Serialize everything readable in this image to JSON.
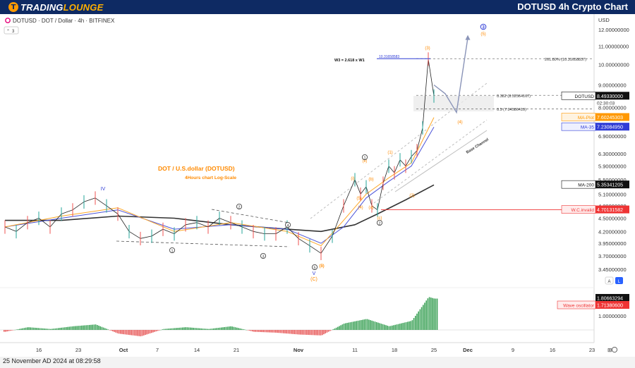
{
  "header": {
    "brand_part1": "TRADING",
    "brand_part2": "LOUNGE",
    "chart_title": "DOTUSD 4h Crypto Chart"
  },
  "symbol_line": "DOTUSD · DOT / Dollar · 4h · BITFINEX",
  "indicator_count": "3",
  "footer_date": "25 November AD 2024 at 08:29:58",
  "price_axis": {
    "currency": "USD",
    "ticks": [
      "12.00000000",
      "11.00000000",
      "10.00000000",
      "9.00000000",
      "8.00000000",
      "6.90000000",
      "6.30000000",
      "5.90000000",
      "5.50000000",
      "5.10000000",
      "4.80000000",
      "4.50000000",
      "4.20000000",
      "3.95000000",
      "3.70000000",
      "3.45000000"
    ],
    "osc_tick": "1.00000000",
    "scale_buttons": [
      "A",
      "L"
    ]
  },
  "time_axis": {
    "ticks": [
      "16",
      "23",
      "Oct",
      "7",
      "14",
      "21",
      "Nov",
      "11",
      "18",
      "25",
      "Dec",
      "9",
      "16",
      "23"
    ]
  },
  "badges": {
    "price": {
      "name": "DOTUSD",
      "value": "8.49330000",
      "countdown": "02:30:03",
      "color": "#111111"
    },
    "ma_plot": {
      "name": "MA-Plot",
      "value": "7.60245303",
      "color": "#ff9800"
    },
    "ma35": {
      "name": "MA-35",
      "value": "7.23084950",
      "color": "#2f3cd6"
    },
    "ma200": {
      "name": "MA-200",
      "value": "5.35341205",
      "color": "#111111"
    },
    "invalid": {
      "name": "W.C.invalid",
      "value": "4.70131582",
      "color": "#ef3434"
    },
    "osc_value": {
      "value": "1.80663294",
      "color": "#111111"
    },
    "osc": {
      "name": "Wave oscillator",
      "value": "1.71380600",
      "color": "#ef3434"
    }
  },
  "annotations": {
    "chart_name": "DOT / U.S.dollar (DOTUSD)",
    "chart_sub": "4Hours chart  Log-Scale",
    "w3_note": "W3 = 2.618 x W1",
    "fib_top_label": "10.31658583",
    "fib_2618": "261.80% (10.31658837)",
    "fib_0382": "0.382 (8.52564167)",
    "fib_05": "0.5 (7.94586419)",
    "base_channel": "Base Channel"
  },
  "wave_labels": {
    "big_wave_3": "3",
    "proj_5": "(5)",
    "proj_4": "(4)",
    "w3": "(3)",
    "w1": "(1)",
    "w2": "(2)",
    "w4": "(4)",
    "w5": "(5)",
    "wi": "(i)",
    "wii": "(ii)",
    "circ_1": "1",
    "circ_2": "2",
    "circ_3": "3",
    "circ_4": "4",
    "circ_5": "5",
    "circ_1b": "1",
    "circ_2b": "2",
    "roman_iv": "IV",
    "roman_v": "V",
    "circ_b": "B",
    "sub_a": "(a)",
    "sub_b": "(b)",
    "sub_c": "(c)",
    "sub_5b": "(5)",
    "sub_2b": "(2)",
    "big_c": "(C)"
  },
  "chart_data": {
    "type": "line",
    "title": "DOT / U.S.dollar (DOTUSD)",
    "scale": "log",
    "x_unit": "date 2024",
    "ylim": [
      3.4,
      12.5
    ],
    "series": [
      {
        "name": "DOTUSD",
        "x": [
          "Sep 10",
          "Sep 12",
          "Sep 14",
          "Sep 16",
          "Sep 18",
          "Sep 20",
          "Sep 22",
          "Sep 24",
          "Sep 26",
          "Sep 28",
          "Sep 30",
          "Oct 2",
          "Oct 4",
          "Oct 6",
          "Oct 8",
          "Oct 10",
          "Oct 12",
          "Oct 14",
          "Oct 16",
          "Oct 18",
          "Oct 20",
          "Oct 22",
          "Oct 24",
          "Oct 26",
          "Oct 28",
          "Oct 30",
          "Nov 1",
          "Nov 3",
          "Nov 5",
          "Nov 7",
          "Nov 9",
          "Nov 11",
          "Nov 12",
          "Nov 13",
          "Nov 14",
          "Nov 15",
          "Nov 16",
          "Nov 17",
          "Nov 18",
          "Nov 19",
          "Nov 20",
          "Nov 21",
          "Nov 22",
          "Nov 23",
          "Nov 24",
          "Nov 25"
        ],
        "y": [
          4.3,
          4.2,
          4.4,
          4.5,
          4.3,
          4.6,
          4.7,
          4.9,
          5.0,
          4.8,
          4.6,
          4.2,
          4.05,
          4.1,
          4.25,
          4.15,
          4.35,
          4.4,
          4.3,
          4.5,
          4.4,
          4.3,
          4.2,
          4.15,
          4.15,
          4.3,
          4.05,
          3.9,
          3.75,
          4.1,
          4.8,
          5.5,
          5.1,
          5.3,
          4.8,
          4.7,
          5.4,
          5.9,
          5.7,
          6.1,
          5.9,
          6.2,
          6.4,
          7.2,
          10.3,
          8.5
        ]
      },
      {
        "name": "MA-200",
        "x": [
          "Sep 10",
          "Sep 20",
          "Sep 30",
          "Oct 10",
          "Oct 20",
          "Oct 30",
          "Nov 5",
          "Nov 11",
          "Nov 15",
          "Nov 20",
          "Nov 25"
        ],
        "y": [
          4.45,
          4.45,
          4.55,
          4.5,
          4.35,
          4.25,
          4.2,
          4.35,
          4.6,
          4.95,
          5.35
        ]
      },
      {
        "name": "MA-35",
        "x": [
          "Sep 10",
          "Sep 20",
          "Sep 30",
          "Oct 10",
          "Oct 20",
          "Oct 30",
          "Nov 5",
          "Nov 9",
          "Nov 13",
          "Nov 17",
          "Nov 21",
          "Nov 25"
        ],
        "y": [
          4.3,
          4.5,
          4.7,
          4.25,
          4.35,
          4.25,
          3.95,
          4.3,
          5.0,
          5.45,
          5.9,
          7.23
        ]
      },
      {
        "name": "MA-Plot",
        "x": [
          "Sep 10",
          "Sep 20",
          "Sep 30",
          "Oct 10",
          "Oct 20",
          "Oct 30",
          "Nov 5",
          "Nov 9",
          "Nov 13",
          "Nov 17",
          "Nov 21",
          "Nov 25"
        ],
        "y": [
          4.3,
          4.55,
          4.75,
          4.2,
          4.4,
          4.2,
          3.9,
          4.45,
          5.1,
          5.55,
          6.0,
          7.6
        ]
      }
    ],
    "oscillator": {
      "name": "Wave oscillator",
      "x": [
        "Sep 10",
        "Sep 14",
        "Sep 18",
        "Sep 22",
        "Sep 26",
        "Sep 30",
        "Oct 4",
        "Oct 8",
        "Oct 12",
        "Oct 16",
        "Oct 20",
        "Oct 24",
        "Oct 28",
        "Nov 1",
        "Nov 5",
        "Nov 9",
        "Nov 13",
        "Nov 17",
        "Nov 21",
        "Nov 24",
        "Nov 25"
      ],
      "y": [
        -0.1,
        0.15,
        0.05,
        0.2,
        0.3,
        -0.2,
        -0.35,
        0.05,
        0.15,
        0.05,
        0.2,
        -0.1,
        -0.15,
        -0.25,
        -0.3,
        0.35,
        0.6,
        0.2,
        0.5,
        1.8,
        1.71
      ]
    },
    "levels": [
      {
        "label": "261.80% (10.31658837)",
        "y": 10.3166
      },
      {
        "label": "0.382 (8.52564167)",
        "y": 8.5256
      },
      {
        "label": "0.5 (7.94586419)",
        "y": 7.9459
      },
      {
        "label": "W.C.invalid",
        "y": 4.7013
      }
    ],
    "projection": {
      "x": [
        "Nov 25",
        "Nov 27",
        "Nov 29",
        "Dec 1"
      ],
      "y": [
        9.0,
        8.6,
        7.8,
        11.5
      ]
    }
  }
}
